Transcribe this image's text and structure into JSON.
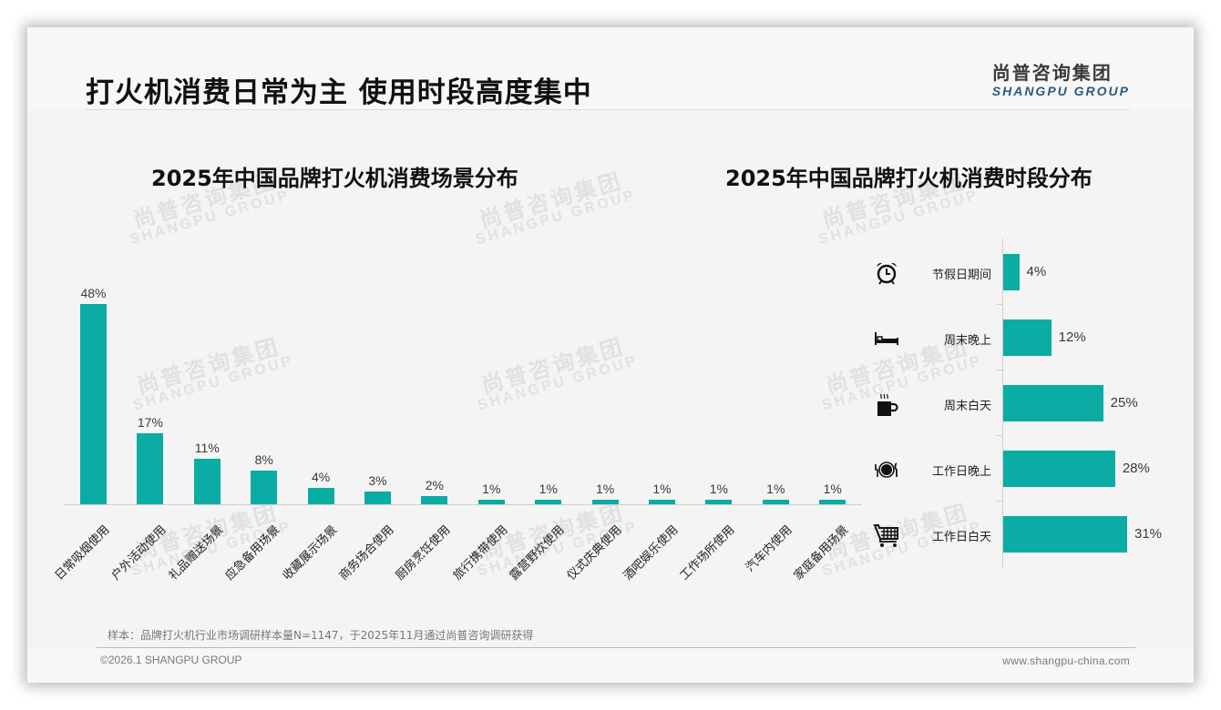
{
  "header": {
    "title": "打火机消费日常为主 使用时段高度集中",
    "logo_cn": "尚普咨询集团",
    "logo_en": "SHANGPU GROUP"
  },
  "watermark": {
    "cn": "尚普咨询集团",
    "en": "SHANGPU GROUP"
  },
  "colors": {
    "bar": "#0aaca4",
    "title": "#111111",
    "logo_en": "#2a5a80"
  },
  "left_chart": {
    "title": "2025年中国品牌打火机消费场景分布"
  },
  "right_chart": {
    "title": "2025年中国品牌打火机消费时段分布",
    "icons": [
      "alarm-clock-icon",
      "bed-icon",
      "coffee-cup-icon",
      "dinner-plate-icon",
      "shopping-cart-icon"
    ]
  },
  "chart_data": [
    {
      "type": "bar",
      "title": "2025年中国品牌打火机消费场景分布",
      "orientation": "vertical",
      "categories": [
        "日常吸烟使用",
        "户外活动使用",
        "礼品赠送场景",
        "应急备用场景",
        "收藏展示场景",
        "商务场合使用",
        "厨房烹饪使用",
        "旅行携带使用",
        "露营野炊使用",
        "仪式庆典使用",
        "酒吧娱乐使用",
        "工作场所使用",
        "汽车内使用",
        "家庭备用场景"
      ],
      "values": [
        48,
        17,
        11,
        8,
        4,
        3,
        2,
        1,
        1,
        1,
        1,
        1,
        1,
        1
      ],
      "labels": [
        "48%",
        "17%",
        "11%",
        "8%",
        "4%",
        "3%",
        "2%",
        "1%",
        "1%",
        "1%",
        "1%",
        "1%",
        "1%",
        "1%"
      ],
      "unit": "%",
      "xlabel": "",
      "ylabel": "",
      "ylim": [
        0,
        50
      ],
      "grid": false,
      "legend": null
    },
    {
      "type": "bar",
      "title": "2025年中国品牌打火机消费时段分布",
      "orientation": "horizontal",
      "categories": [
        "节假日期间",
        "周末晚上",
        "周末白天",
        "工作日晚上",
        "工作日白天"
      ],
      "values": [
        4,
        12,
        25,
        28,
        31
      ],
      "labels": [
        "4%",
        "12%",
        "25%",
        "28%",
        "31%"
      ],
      "unit": "%",
      "xlabel": "",
      "ylabel": "",
      "xlim": [
        0,
        35
      ],
      "grid": false,
      "legend": null
    }
  ],
  "footer": {
    "note": "样本：品牌打火机行业市场调研样本量N=1147，于2025年11月通过尚普咨询调研获得",
    "copyright": "©2026.1 SHANGPU GROUP",
    "website": "www.shangpu-china.com"
  }
}
